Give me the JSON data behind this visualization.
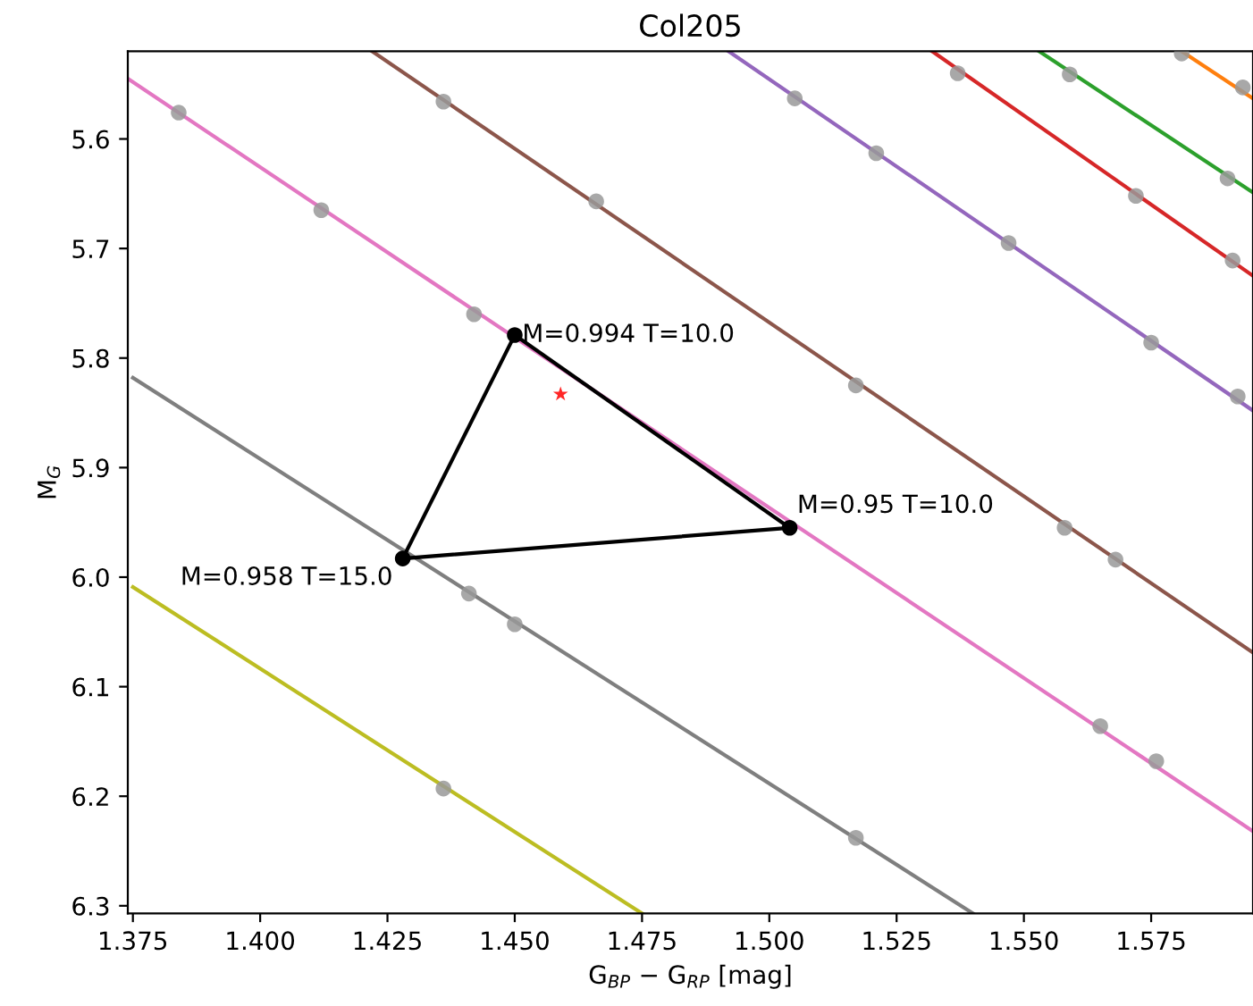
{
  "chart_data": {
    "type": "line",
    "title": "Col205",
    "xlabel": "G$_{BP}$ − G$_{RP}$ [mag]",
    "ylabel": "M$_{G}$",
    "xlim": [
      1.374,
      1.595
    ],
    "ylim": [
      6.307,
      5.52
    ],
    "xticks": [
      {
        "value": 1.375,
        "label": "1.375"
      },
      {
        "value": 1.4,
        "label": "1.400"
      },
      {
        "value": 1.425,
        "label": "1.425"
      },
      {
        "value": 1.45,
        "label": "1.450"
      },
      {
        "value": 1.475,
        "label": "1.475"
      },
      {
        "value": 1.5,
        "label": "1.500"
      },
      {
        "value": 1.525,
        "label": "1.525"
      },
      {
        "value": 1.55,
        "label": "1.550"
      },
      {
        "value": 1.575,
        "label": "1.575"
      }
    ],
    "yticks": [
      {
        "value": 5.6,
        "label": "5.6"
      },
      {
        "value": 5.7,
        "label": "5.7"
      },
      {
        "value": 5.8,
        "label": "5.8"
      },
      {
        "value": 5.9,
        "label": "5.9"
      },
      {
        "value": 6.0,
        "label": "6.0"
      },
      {
        "value": 6.1,
        "label": "6.1"
      },
      {
        "value": 6.2,
        "label": "6.2"
      },
      {
        "value": 6.3,
        "label": "6.3"
      }
    ],
    "grid": false,
    "legend": false,
    "series": [
      {
        "type": "line",
        "color": "#ff7f0e",
        "marker": "none",
        "x": [
          1.581,
          1.595
        ],
        "values": [
          5.52,
          5.563
        ]
      },
      {
        "color": "#2ca02c",
        "marker": "none",
        "x": [
          1.553,
          1.595
        ],
        "values": [
          5.52,
          5.649
        ]
      },
      {
        "type": "line",
        "color": "#d62728",
        "marker": "none",
        "x": [
          1.532,
          1.595
        ],
        "values": [
          5.52,
          5.725
        ]
      },
      {
        "type": "line",
        "color": "#9467bd",
        "marker": "none",
        "x": [
          1.492,
          1.595
        ],
        "values": [
          5.52,
          5.848
        ]
      },
      {
        "type": "line",
        "color": "#8c564b",
        "marker": "none",
        "x": [
          1.422,
          1.595
        ],
        "values": [
          5.52,
          6.069
        ]
      },
      {
        "type": "line",
        "color": "#e377c2",
        "marker": "none",
        "x": [
          1.374,
          1.595
        ],
        "values": [
          5.545,
          6.232
        ]
      },
      {
        "type": "line",
        "color": "#7f7f7f",
        "marker": "none",
        "x": [
          1.375,
          1.54
        ],
        "values": [
          5.818,
          6.307
        ]
      },
      {
        "type": "line",
        "color": "#bcbd22",
        "marker": "none",
        "x": [
          1.375,
          1.475
        ],
        "values": [
          6.009,
          6.307
        ]
      },
      {
        "type": "scatter",
        "color": "#999999",
        "marker": "circle",
        "x": [
          1.384,
          1.412,
          1.442,
          1.565,
          1.576,
          1.436,
          1.466,
          1.517,
          1.558,
          1.568,
          1.441,
          1.45,
          1.517,
          1.436,
          1.505,
          1.521,
          1.547,
          1.575,
          1.592,
          1.537,
          1.572,
          1.591,
          1.559,
          1.59,
          1.581,
          1.593
        ],
        "values": [
          5.576,
          5.665,
          5.76,
          6.136,
          6.168,
          5.566,
          5.657,
          5.825,
          5.955,
          5.984,
          6.015,
          6.043,
          6.238,
          6.193,
          5.563,
          5.613,
          5.695,
          5.786,
          5.835,
          5.54,
          5.652,
          5.711,
          5.541,
          5.636,
          5.522,
          5.553
        ]
      },
      {
        "type": "line",
        "color": "#000000",
        "marker": "none",
        "x": [
          1.45,
          1.504
        ],
        "values": [
          5.779,
          5.955
        ]
      },
      {
        "type": "line",
        "color": "#000000",
        "marker": "none",
        "x": [
          1.428,
          1.504
        ],
        "values": [
          5.983,
          5.955
        ]
      },
      {
        "type": "line",
        "color": "#000000",
        "marker": "none",
        "x": [
          1.428,
          1.45
        ],
        "values": [
          5.983,
          5.779
        ]
      },
      {
        "type": "scatter",
        "color": "#000000",
        "marker": "circle",
        "x": [
          1.45,
          1.504,
          1.428
        ],
        "values": [
          5.779,
          5.955,
          5.983
        ]
      },
      {
        "type": "scatter",
        "color": "#ff0000",
        "marker": "star",
        "x": [
          1.459
        ],
        "values": [
          5.833
        ]
      }
    ],
    "annotations": [
      {
        "text": "M=0.994 T=10.0",
        "x": 1.45,
        "y": 5.779
      },
      {
        "text": "M=0.95 T=10.0",
        "x": 1.504,
        "y": 5.955
      },
      {
        "text": "M=0.958 T=15.0",
        "x": 1.428,
        "y": 5.983
      }
    ]
  }
}
